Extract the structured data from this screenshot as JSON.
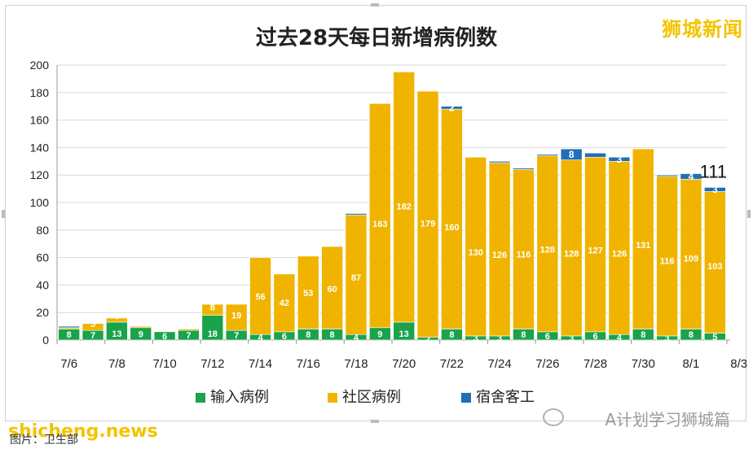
{
  "chart_data": {
    "type": "bar",
    "stacked": true,
    "title": "过去28天每日新增病例数",
    "categories": [
      "7/6",
      "7/7",
      "7/8",
      "7/9",
      "7/10",
      "7/11",
      "7/12",
      "7/13",
      "7/14",
      "7/15",
      "7/16",
      "7/17",
      "7/18",
      "7/19",
      "7/20",
      "7/21",
      "7/22",
      "7/23",
      "7/24",
      "7/25",
      "7/26",
      "7/27",
      "7/28",
      "7/29",
      "7/30",
      "7/31",
      "8/1",
      "8/2"
    ],
    "x_tick_labels": [
      "7/6",
      "7/8",
      "7/10",
      "7/12",
      "7/14",
      "7/16",
      "7/18",
      "7/20",
      "7/22",
      "7/24",
      "7/26",
      "7/28",
      "7/30",
      "8/1",
      "8/3"
    ],
    "ylim": [
      0,
      200
    ],
    "yticks": [
      0,
      20,
      40,
      60,
      80,
      100,
      120,
      140,
      160,
      180,
      200
    ],
    "series": [
      {
        "name": "输入病例",
        "color": "#1aa34a",
        "values": [
          8,
          7,
          13,
          9,
          6,
          7,
          18,
          7,
          4,
          6,
          8,
          8,
          4,
          9,
          13,
          2,
          8,
          3,
          3,
          8,
          6,
          3,
          6,
          4,
          8,
          3,
          8,
          5
        ],
        "labels": [
          "8",
          "7",
          "13",
          "9",
          "6",
          "7",
          "18",
          "7",
          "4",
          "6",
          "8",
          "8",
          "4",
          "9",
          "13",
          "2",
          "8",
          "3",
          "3",
          "8",
          "6",
          "3",
          "6",
          "4",
          "8",
          "3",
          "8",
          "5"
        ]
      },
      {
        "name": "社区病例",
        "color": "#f0b400",
        "values": [
          1,
          5,
          3,
          1,
          0,
          1,
          8,
          19,
          56,
          42,
          53,
          60,
          87,
          163,
          182,
          179,
          160,
          130,
          126,
          116,
          128,
          128,
          127,
          126,
          131,
          116,
          109,
          103
        ],
        "labels": [
          "",
          "5",
          "3",
          "",
          "",
          "",
          "8",
          "19",
          "56",
          "42",
          "53",
          "60",
          "87",
          "163",
          "182",
          "179",
          "160",
          "130",
          "126",
          "116",
          "128",
          "128",
          "127",
          "126",
          "131",
          "116",
          "109",
          "103"
        ]
      },
      {
        "name": "宿舍客工",
        "color": "#1f6fb5",
        "values": [
          1,
          0,
          0,
          0,
          0,
          0,
          0,
          0,
          0,
          0,
          0,
          0,
          1,
          0,
          0,
          0,
          2,
          0,
          1,
          1,
          1,
          8,
          3,
          3,
          0,
          1,
          4,
          3
        ],
        "labels": [
          "",
          "",
          "",
          "",
          "",
          "",
          "",
          "",
          "",
          "",
          "",
          "",
          "",
          "",
          "",
          "",
          "2",
          "",
          "",
          "",
          "",
          "8",
          "",
          "3",
          "",
          "",
          "4",
          "3"
        ]
      }
    ],
    "annotations": [
      {
        "category": "8/2",
        "text": "111"
      }
    ],
    "legend_position": "bottom",
    "grid": true
  },
  "watermarks": {
    "brand": "狮城新闻",
    "bottom_left": "shicheng.news",
    "bottom_right": "A计划学习狮城篇",
    "bottom_small": "图片：卫生部"
  }
}
